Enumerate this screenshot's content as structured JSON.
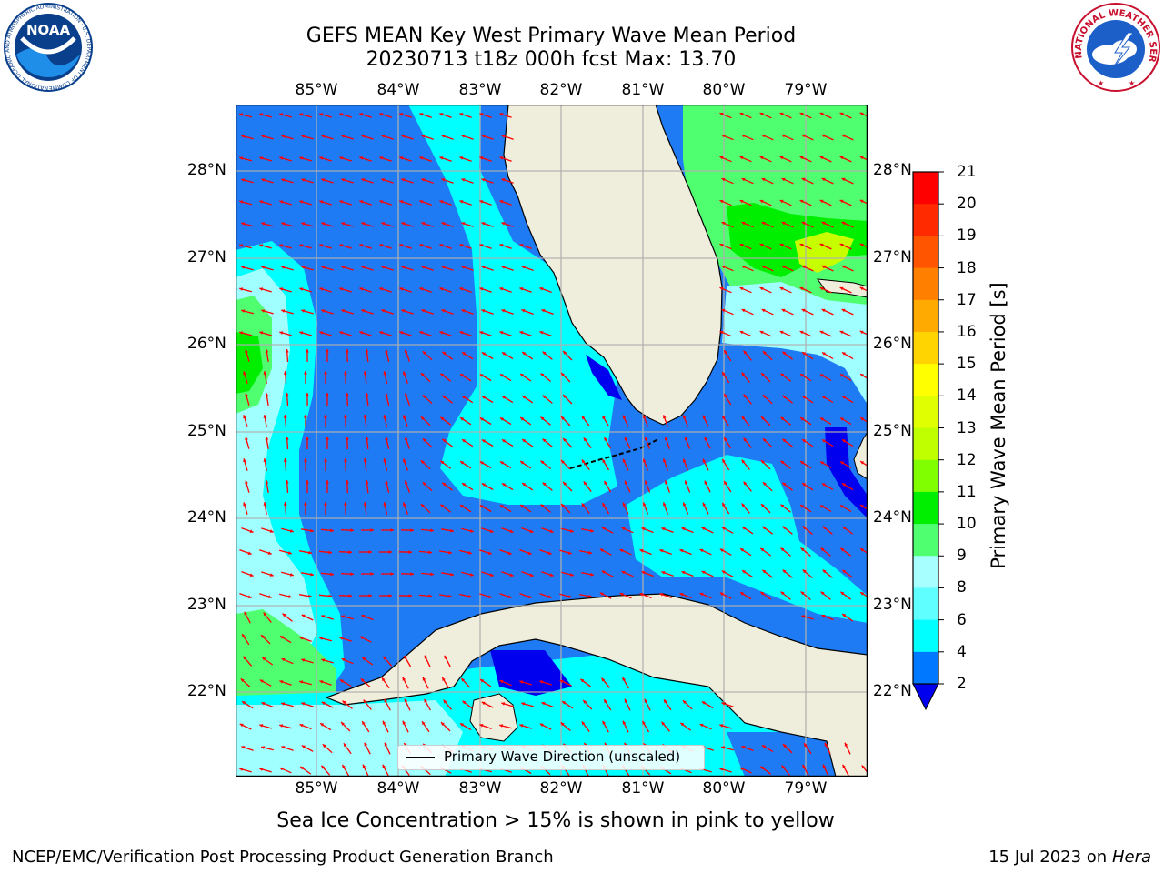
{
  "title_line1": "GEFS MEAN Key West Primary Wave Mean Period",
  "title_line2": "20230713 t18z 000h fcst   Max: 13.70",
  "lon_labels": [
    "85°W",
    "84°W",
    "83°W",
    "82°W",
    "81°W",
    "80°W",
    "79°W"
  ],
  "lat_labels": [
    "28°N",
    "27°N",
    "26°N",
    "25°N",
    "24°N",
    "23°N",
    "22°N"
  ],
  "colorbar": {
    "title": "Primary Wave Mean Period [s]",
    "ticks": [
      "21",
      "20",
      "19",
      "18",
      "17",
      "16",
      "15",
      "14",
      "13",
      "12",
      "11",
      "10",
      "9",
      "8",
      "6",
      "4",
      "2"
    ],
    "colors": [
      "#ff0000",
      "#ff2a00",
      "#ff5500",
      "#ff8000",
      "#ffaa00",
      "#ffd400",
      "#ffff00",
      "#e0ff00",
      "#c0ff00",
      "#80ff00",
      "#00ee00",
      "#50ff70",
      "#a8ffff",
      "#60ffff",
      "#00ffff",
      "#0078ff",
      "#0000ee"
    ]
  },
  "legend_label": "Primary Wave Direction (unscaled)",
  "caption": "Sea Ice Concentration > 15% is shown in pink to yellow",
  "footer_left": "NCEP/EMC/Verification Post Processing Product Generation Branch",
  "footer_date": "15 Jul 2023 on",
  "footer_host": "Hera",
  "noaa_logo": {
    "text": "NOAA",
    "ring_text": "NATIONAL OCEANIC AND ATMOSPHERIC ADMINISTRATION · U.S. DEPARTMENT OF COMMERCE"
  },
  "nws_logo": {
    "ring_text": "NATIONAL WEATHER SERVICE"
  },
  "map_colors": {
    "ocean_main": "#1f7bf4",
    "ocean_cyan": "#00ffff",
    "ocean_lightcyan": "#a0ffff",
    "green": "#50ff70",
    "bright_green": "#00ee00",
    "yellow_green": "#c8ff00",
    "deep_blue": "#0000ee",
    "land": "#efeedc",
    "arrow": "#ff0000",
    "grid": "#b0b0b0"
  }
}
